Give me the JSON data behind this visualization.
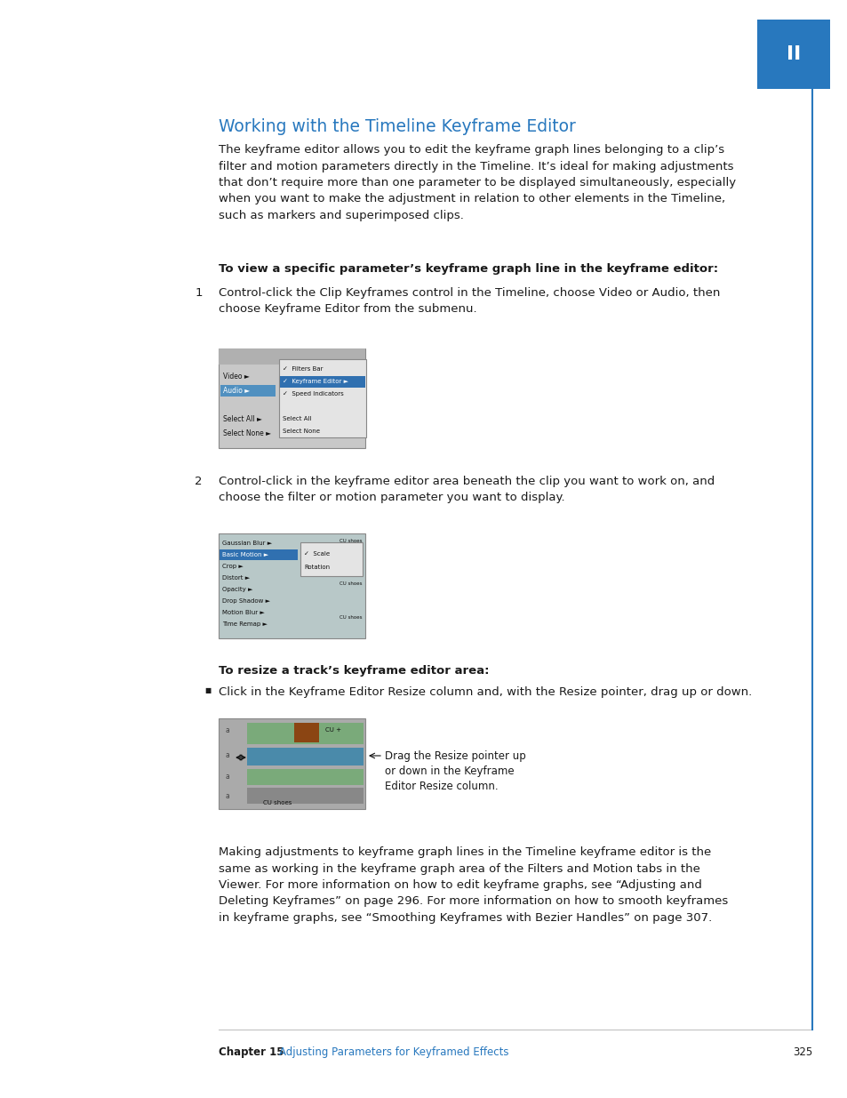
{
  "page_bg": "#ffffff",
  "tab_color": "#2878be",
  "tab_text": "II",
  "title": "Working with the Timeline Keyframe Editor",
  "title_color": "#2878be",
  "body_color": "#1a1a1a",
  "body_text_1": "The keyframe editor allows you to edit the keyframe graph lines belonging to a clip’s\nfilter and motion parameters directly in the Timeline. It’s ideal for making adjustments\nthat don’t require more than one parameter to be displayed simultaneously, especially\nwhen you want to make the adjustment in relation to other elements in the Timeline,\nsuch as markers and superimposed clips.",
  "bold_heading_1": "To view a specific parameter’s keyframe graph line in the keyframe editor:",
  "step1_text": "Control-click the Clip Keyframes control in the Timeline, choose Video or Audio, then\nchoose Keyframe Editor from the submenu.",
  "step2_text": "Control-click in the keyframe editor area beneath the clip you want to work on, and\nchoose the filter or motion parameter you want to display.",
  "bold_heading_2": "To resize a track’s keyframe editor area:",
  "bullet_text": "Click in the Keyframe Editor Resize column and, with the Resize pointer, drag up or down.",
  "annotation_text": "Drag the Resize pointer up\nor down in the Keyframe\nEditor Resize column.",
  "body_text_2": "Making adjustments to keyframe graph lines in the Timeline keyframe editor is the\nsame as working in the keyframe graph area of the Filters and Motion tabs in the\nViewer. For more information on how to edit keyframe graphs, see “Adjusting and\nDeleting Keyframes” on page 296. For more information on how to smooth keyframes\nin keyframe graphs, see “Smoothing Keyframes with Bezier Handles” on page 307.",
  "footer_chapter": "Chapter 15",
  "footer_link_text": "Adjusting Parameters for Keyframed Effects",
  "footer_page": "325",
  "footer_color": "#2878be",
  "vline_color": "#2878be",
  "check": "✓",
  "arrow_right": "►",
  "bullet_square": "■"
}
